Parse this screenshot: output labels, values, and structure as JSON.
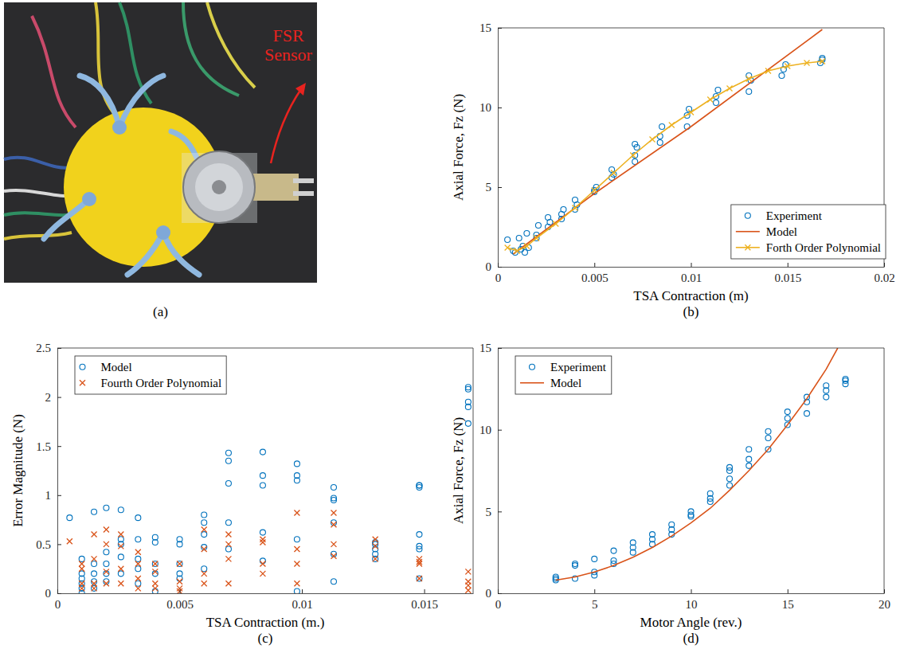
{
  "chart_data": [
    {
      "type": "image",
      "panel": "(a)",
      "annotation": "FSR Sensor"
    },
    {
      "type": "scatter",
      "panel": "(b)",
      "xlabel": "TSA Contraction (m)",
      "ylabel": "Axial Force, Fz (N)",
      "xlim": [
        0,
        0.02
      ],
      "ylim": [
        0,
        15
      ],
      "xticks": [
        0,
        0.005,
        0.01,
        0.015,
        0.02
      ],
      "yticks": [
        0,
        5,
        10,
        15
      ],
      "grid": false,
      "legend": "southeast",
      "series": [
        {
          "name": "Experiment",
          "type": "scatter",
          "marker": "circle",
          "line_style": "none",
          "color": "#0072bd",
          "x": [
            0.0005,
            0.0008,
            0.0009,
            0.0011,
            0.0012,
            0.0013,
            0.0014,
            0.0015,
            0.0016,
            0.002,
            0.0021,
            0.002,
            0.0026,
            0.0027,
            0.0026,
            0.0033,
            0.0033,
            0.0034,
            0.004,
            0.0041,
            0.004,
            0.005,
            0.005,
            0.0051,
            0.0059,
            0.006,
            0.0059,
            0.0071,
            0.0071,
            0.0072,
            0.0071,
            0.0084,
            0.0084,
            0.0085,
            0.0098,
            0.0098,
            0.0099,
            0.0113,
            0.0113,
            0.0114,
            0.013,
            0.0131,
            0.013,
            0.0147,
            0.0148,
            0.0149,
            0.0167,
            0.0168,
            0.0168
          ],
          "values": [
            1.7,
            1.0,
            0.9,
            1.8,
            1.1,
            1.3,
            0.9,
            2.1,
            1.2,
            1.8,
            2.6,
            2.0,
            2.5,
            2.8,
            3.1,
            3.0,
            3.3,
            3.6,
            3.6,
            3.9,
            4.2,
            4.7,
            4.8,
            5.0,
            5.6,
            5.8,
            6.1,
            6.6,
            7.0,
            7.5,
            7.7,
            7.8,
            8.2,
            8.8,
            8.8,
            9.5,
            9.9,
            10.3,
            10.7,
            11.1,
            11.0,
            11.7,
            12.0,
            12.0,
            12.4,
            12.7,
            12.8,
            13.0,
            13.1
          ]
        },
        {
          "name": "Model",
          "type": "line",
          "marker": "none",
          "line_style": "solid",
          "color": "#d95319",
          "x": [
            0.0008,
            0.005,
            0.01,
            0.0168
          ],
          "values": [
            0.8,
            4.6,
            8.8,
            14.9
          ]
        },
        {
          "name": "Forth Order Polynomial",
          "type": "line",
          "marker": "x",
          "line_style": "solid",
          "color": "#edb120",
          "x": [
            0.0005,
            0.001,
            0.0015,
            0.002,
            0.003,
            0.004,
            0.005,
            0.006,
            0.007,
            0.008,
            0.009,
            0.01,
            0.011,
            0.012,
            0.013,
            0.014,
            0.015,
            0.016,
            0.0168
          ],
          "values": [
            1.2,
            1.0,
            1.3,
            1.8,
            2.7,
            3.7,
            4.8,
            5.9,
            7.0,
            8.0,
            8.9,
            9.7,
            10.5,
            11.2,
            11.8,
            12.3,
            12.6,
            12.8,
            12.9
          ]
        }
      ]
    },
    {
      "type": "scatter",
      "panel": "(c)",
      "xlabel": "TSA Contraction (m.)",
      "ylabel": "Error Magnitude (N)",
      "xlim": [
        0,
        0.017
      ],
      "ylim": [
        0,
        2.5
      ],
      "xticks": [
        0,
        0.005,
        0.01,
        0.015
      ],
      "yticks": [
        0,
        0.5,
        1,
        1.5,
        2,
        2.5
      ],
      "grid": false,
      "legend": "northwest",
      "series": [
        {
          "name": "Model",
          "type": "scatter",
          "marker": "circle",
          "line_style": "none",
          "color": "#0072bd",
          "x": [
            0.0005,
            0.001,
            0.001,
            0.001,
            0.001,
            0.001,
            0.001,
            0.0015,
            0.0015,
            0.0015,
            0.0015,
            0.0015,
            0.002,
            0.002,
            0.002,
            0.002,
            0.002,
            0.0026,
            0.0026,
            0.0026,
            0.0026,
            0.0026,
            0.0033,
            0.0033,
            0.0033,
            0.0033,
            0.0033,
            0.004,
            0.004,
            0.004,
            0.004,
            0.004,
            0.005,
            0.005,
            0.005,
            0.005,
            0.005,
            0.006,
            0.006,
            0.006,
            0.006,
            0.006,
            0.007,
            0.007,
            0.007,
            0.007,
            0.007,
            0.0084,
            0.0084,
            0.0084,
            0.0084,
            0.0084,
            0.0098,
            0.0098,
            0.0098,
            0.0098,
            0.0098,
            0.0113,
            0.0113,
            0.0113,
            0.0113,
            0.0113,
            0.0113,
            0.013,
            0.013,
            0.013,
            0.013,
            0.013,
            0.0148,
            0.0148,
            0.0148,
            0.0148,
            0.0148,
            0.0148,
            0.0148,
            0.0168,
            0.0168,
            0.0168,
            0.0168,
            0.0168
          ],
          "values": [
            0.77,
            0.35,
            0.2,
            0.15,
            0.1,
            0.05,
            0.0,
            0.83,
            0.3,
            0.2,
            0.12,
            0.05,
            0.87,
            0.42,
            0.3,
            0.2,
            0.12,
            0.85,
            0.55,
            0.5,
            0.37,
            0.2,
            0.77,
            0.55,
            0.35,
            0.25,
            0.1,
            0.57,
            0.52,
            0.3,
            0.2,
            0.02,
            0.55,
            0.5,
            0.3,
            0.2,
            0.15,
            0.8,
            0.72,
            0.6,
            0.47,
            0.25,
            1.43,
            1.35,
            1.12,
            0.72,
            0.45,
            1.44,
            1.2,
            1.1,
            0.62,
            0.33,
            1.32,
            1.2,
            1.15,
            0.55,
            0.02,
            1.08,
            0.97,
            0.95,
            0.72,
            0.4,
            0.12,
            0.52,
            0.5,
            0.45,
            0.4,
            0.35,
            1.1,
            1.1,
            1.08,
            0.6,
            0.48,
            0.45,
            0.15,
            2.1,
            2.08,
            1.95,
            1.9,
            1.73
          ]
        },
        {
          "name": "Fourth Order Polynomial",
          "type": "scatter",
          "marker": "x",
          "line_style": "none",
          "color": "#d95319",
          "x": [
            0.0005,
            0.001,
            0.001,
            0.001,
            0.001,
            0.0015,
            0.0015,
            0.0015,
            0.0015,
            0.002,
            0.002,
            0.002,
            0.002,
            0.0026,
            0.0026,
            0.0026,
            0.0026,
            0.0033,
            0.0033,
            0.0033,
            0.0033,
            0.004,
            0.004,
            0.004,
            0.004,
            0.005,
            0.005,
            0.005,
            0.005,
            0.006,
            0.006,
            0.006,
            0.006,
            0.007,
            0.007,
            0.007,
            0.007,
            0.0084,
            0.0084,
            0.0084,
            0.0084,
            0.0098,
            0.0098,
            0.0098,
            0.0098,
            0.0113,
            0.0113,
            0.0113,
            0.0113,
            0.013,
            0.013,
            0.013,
            0.0148,
            0.0148,
            0.0148,
            0.0148,
            0.0168,
            0.0168,
            0.0168,
            0.0168
          ],
          "values": [
            0.53,
            0.3,
            0.25,
            0.1,
            0.05,
            0.6,
            0.35,
            0.1,
            0.05,
            0.65,
            0.5,
            0.22,
            0.1,
            0.6,
            0.48,
            0.25,
            0.1,
            0.42,
            0.3,
            0.15,
            0.05,
            0.3,
            0.22,
            0.1,
            0.05,
            0.3,
            0.12,
            0.05,
            0.02,
            0.65,
            0.45,
            0.2,
            0.1,
            0.6,
            0.5,
            0.35,
            0.1,
            0.55,
            0.52,
            0.3,
            0.2,
            0.82,
            0.45,
            0.3,
            0.1,
            0.82,
            0.7,
            0.5,
            0.38,
            0.55,
            0.48,
            0.35,
            0.35,
            0.32,
            0.3,
            0.15,
            0.22,
            0.12,
            0.08,
            0.03
          ]
        }
      ]
    },
    {
      "type": "scatter",
      "panel": "(d)",
      "xlabel": "Motor Angle (rev.)",
      "ylabel": "Axial Force, Fz (N)",
      "xlim": [
        0,
        20
      ],
      "ylim": [
        0,
        15
      ],
      "xticks": [
        0,
        5,
        10,
        15,
        20
      ],
      "yticks": [
        0,
        5,
        10,
        15
      ],
      "grid": false,
      "legend": "northwest",
      "series": [
        {
          "name": "Experiment",
          "type": "scatter",
          "marker": "circle",
          "line_style": "none",
          "color": "#0072bd",
          "x": [
            3,
            3,
            3,
            4,
            4,
            4,
            5,
            5,
            5,
            6,
            6,
            6,
            7,
            7,
            7,
            8,
            8,
            8,
            9,
            9,
            9,
            10,
            10,
            10,
            11,
            11,
            11,
            12,
            12,
            12,
            12,
            13,
            13,
            13,
            14,
            14,
            14,
            15,
            15,
            15,
            16,
            16,
            16,
            17,
            17,
            17,
            18,
            18,
            18
          ],
          "values": [
            0.9,
            1.0,
            0.8,
            1.7,
            1.8,
            0.9,
            1.1,
            1.3,
            2.1,
            1.8,
            2.0,
            2.6,
            2.5,
            2.8,
            3.1,
            3.0,
            3.3,
            3.6,
            3.6,
            3.9,
            4.2,
            4.7,
            4.8,
            5.0,
            5.6,
            5.8,
            6.1,
            6.6,
            7.0,
            7.5,
            7.7,
            7.8,
            8.2,
            8.8,
            8.8,
            9.5,
            9.9,
            10.3,
            10.7,
            11.1,
            11.0,
            11.7,
            12.0,
            12.0,
            12.4,
            12.7,
            12.8,
            13.0,
            13.1
          ]
        },
        {
          "name": "Model",
          "type": "line",
          "marker": "none",
          "line_style": "solid",
          "color": "#d95319",
          "x": [
            3,
            4,
            5,
            6,
            7,
            8,
            9,
            10,
            11,
            12,
            13,
            14,
            15,
            16,
            17,
            17.6
          ],
          "values": [
            0.8,
            1.0,
            1.3,
            1.7,
            2.2,
            2.8,
            3.5,
            4.3,
            5.2,
            6.3,
            7.5,
            8.8,
            10.3,
            11.9,
            13.7,
            15.0
          ]
        }
      ]
    }
  ]
}
